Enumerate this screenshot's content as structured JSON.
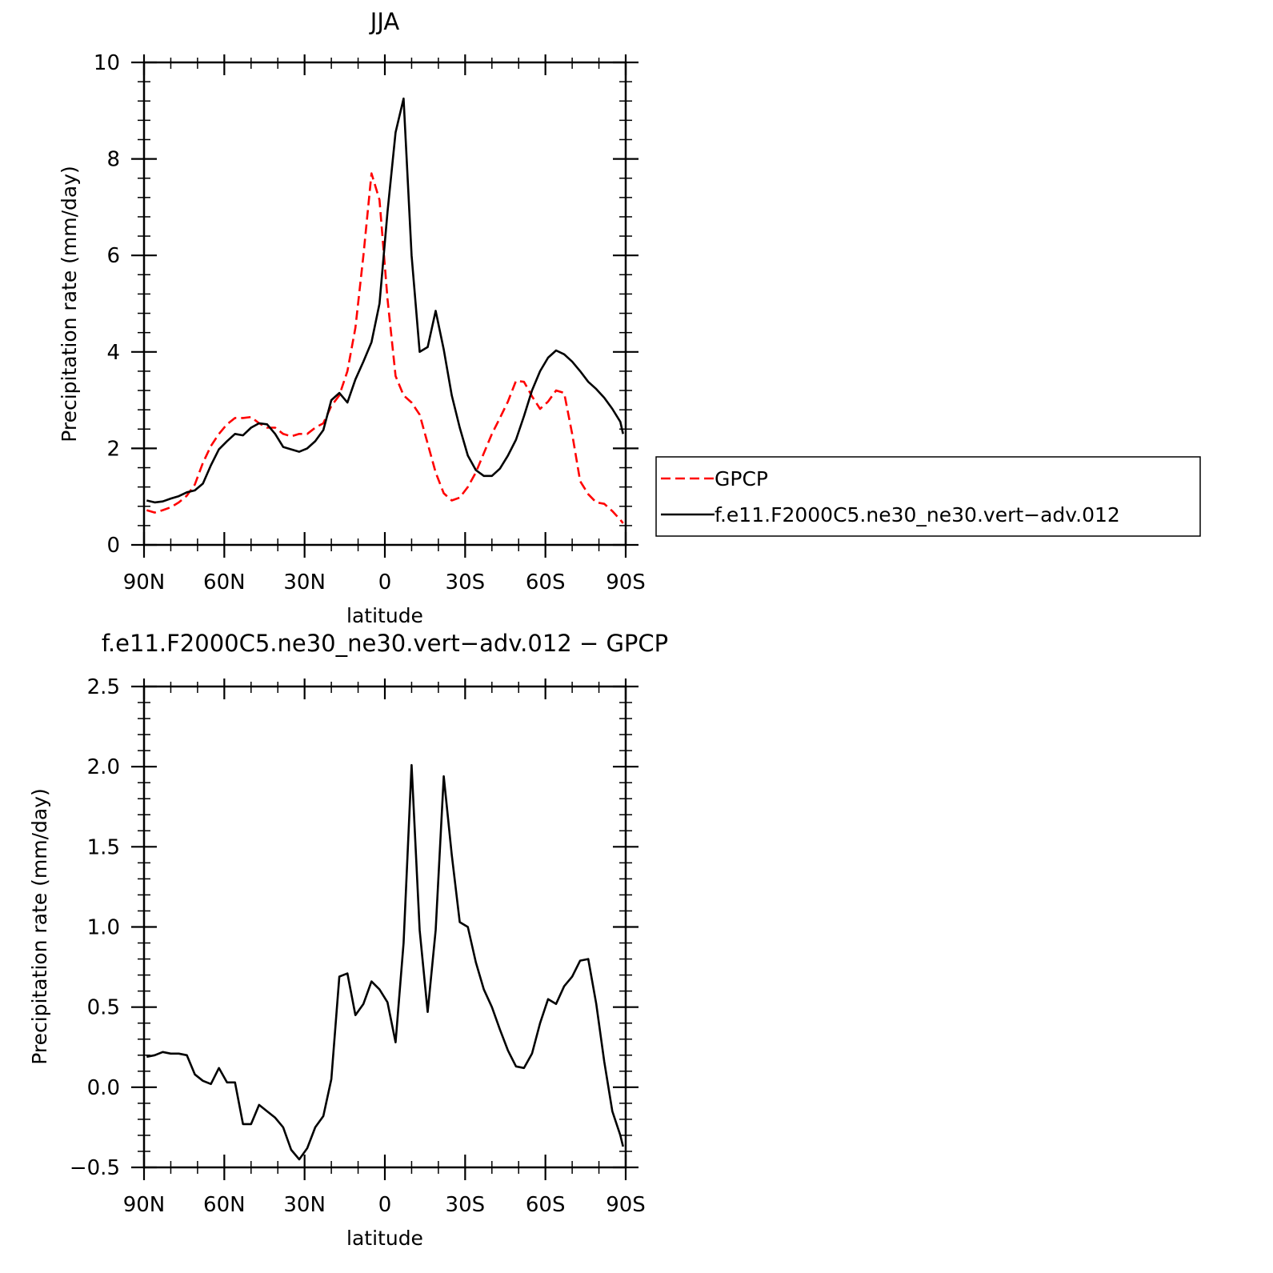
{
  "chart_data": [
    {
      "type": "line",
      "title": "JJA",
      "xlabel": "latitude",
      "ylabel": "Precipitation rate (mm/day)",
      "xlim": [
        90,
        -90
      ],
      "ylim": [
        0,
        10
      ],
      "yticks": [
        0,
        2,
        4,
        6,
        8,
        10
      ],
      "ytick_labels": [
        "0",
        "2",
        "4",
        "6",
        "8",
        "10"
      ],
      "xticks": [
        90,
        60,
        30,
        0,
        -30,
        -60,
        -90
      ],
      "xtick_labels": [
        "90N",
        "60N",
        "30N",
        "0",
        "30S",
        "60S",
        "90S"
      ],
      "legend_position": "right",
      "series": [
        {
          "name": "GPCP",
          "color": "#ff0000",
          "dash": "dashed",
          "points": [
            [
              89,
              0.72
            ],
            [
              86,
              0.67
            ],
            [
              83,
              0.72
            ],
            [
              80,
              0.78
            ],
            [
              77,
              0.88
            ],
            [
              74,
              1.02
            ],
            [
              71,
              1.25
            ],
            [
              68,
              1.7
            ],
            [
              65,
              2.05
            ],
            [
              62,
              2.3
            ],
            [
              59,
              2.5
            ],
            [
              56,
              2.63
            ],
            [
              53,
              2.63
            ],
            [
              50,
              2.65
            ],
            [
              47,
              2.52
            ],
            [
              44,
              2.43
            ],
            [
              41,
              2.43
            ],
            [
              38,
              2.3
            ],
            [
              35,
              2.25
            ],
            [
              32,
              2.3
            ],
            [
              29,
              2.3
            ],
            [
              26,
              2.43
            ],
            [
              23,
              2.52
            ],
            [
              20,
              2.88
            ],
            [
              17,
              3.1
            ],
            [
              14,
              3.6
            ],
            [
              11,
              4.5
            ],
            [
              8,
              6.0
            ],
            [
              5,
              7.7
            ],
            [
              2,
              7.15
            ],
            [
              -1,
              5.1
            ],
            [
              -4,
              3.5
            ],
            [
              -7,
              3.1
            ],
            [
              -10,
              2.95
            ],
            [
              -13,
              2.7
            ],
            [
              -16,
              2.1
            ],
            [
              -19,
              1.5
            ],
            [
              -22,
              1.07
            ],
            [
              -25,
              0.92
            ],
            [
              -28,
              0.98
            ],
            [
              -31,
              1.2
            ],
            [
              -34,
              1.5
            ],
            [
              -37,
              1.9
            ],
            [
              -40,
              2.3
            ],
            [
              -43,
              2.63
            ],
            [
              -46,
              2.97
            ],
            [
              -49,
              3.4
            ],
            [
              -52,
              3.38
            ],
            [
              -55,
              3.08
            ],
            [
              -58,
              2.82
            ],
            [
              -61,
              2.97
            ],
            [
              -64,
              3.2
            ],
            [
              -67,
              3.15
            ],
            [
              -70,
              2.3
            ],
            [
              -73,
              1.32
            ],
            [
              -76,
              1.05
            ],
            [
              -79,
              0.88
            ],
            [
              -82,
              0.85
            ],
            [
              -85,
              0.7
            ],
            [
              -88,
              0.52
            ],
            [
              -89,
              0.45
            ]
          ]
        },
        {
          "name": "f.e11.F2000C5.ne30_ne30.vert−adv.012",
          "color": "#000000",
          "dash": "solid",
          "points": [
            [
              89,
              0.92
            ],
            [
              86,
              0.88
            ],
            [
              83,
              0.9
            ],
            [
              80,
              0.96
            ],
            [
              77,
              1.01
            ],
            [
              74,
              1.09
            ],
            [
              71,
              1.13
            ],
            [
              68,
              1.27
            ],
            [
              65,
              1.65
            ],
            [
              62,
              1.98
            ],
            [
              59,
              2.15
            ],
            [
              56,
              2.3
            ],
            [
              53,
              2.27
            ],
            [
              50,
              2.43
            ],
            [
              47,
              2.52
            ],
            [
              44,
              2.5
            ],
            [
              41,
              2.3
            ],
            [
              38,
              2.03
            ],
            [
              35,
              1.98
            ],
            [
              32,
              1.93
            ],
            [
              29,
              2.0
            ],
            [
              26,
              2.15
            ],
            [
              23,
              2.38
            ],
            [
              20,
              3.0
            ],
            [
              17,
              3.15
            ],
            [
              14,
              2.95
            ],
            [
              11,
              3.43
            ],
            [
              8,
              3.8
            ],
            [
              5,
              4.2
            ],
            [
              2,
              5.0
            ],
            [
              -1,
              6.9
            ],
            [
              -4,
              8.55
            ],
            [
              -7,
              9.25
            ],
            [
              -10,
              6.0
            ],
            [
              -13,
              4.0
            ],
            [
              -16,
              4.1
            ],
            [
              -19,
              4.85
            ],
            [
              -22,
              4.05
            ],
            [
              -25,
              3.1
            ],
            [
              -28,
              2.43
            ],
            [
              -31,
              1.85
            ],
            [
              -34,
              1.55
            ],
            [
              -37,
              1.43
            ],
            [
              -40,
              1.43
            ],
            [
              -43,
              1.58
            ],
            [
              -46,
              1.85
            ],
            [
              -49,
              2.18
            ],
            [
              -52,
              2.67
            ],
            [
              -55,
              3.2
            ],
            [
              -58,
              3.6
            ],
            [
              -61,
              3.88
            ],
            [
              -64,
              4.03
            ],
            [
              -67,
              3.95
            ],
            [
              -70,
              3.8
            ],
            [
              -73,
              3.6
            ],
            [
              -76,
              3.38
            ],
            [
              -79,
              3.23
            ],
            [
              -82,
              3.05
            ],
            [
              -85,
              2.82
            ],
            [
              -88,
              2.55
            ],
            [
              -89,
              2.3
            ]
          ]
        }
      ]
    },
    {
      "type": "line",
      "title": "f.e11.F2000C5.ne30_ne30.vert−adv.012 − GPCP",
      "xlabel": "latitude",
      "ylabel": "Precipitation rate (mm/day)",
      "xlim": [
        90,
        -90
      ],
      "ylim": [
        -0.5,
        2.5
      ],
      "yticks": [
        -0.5,
        0.0,
        0.5,
        1.0,
        1.5,
        2.0,
        2.5
      ],
      "ytick_labels": [
        "−0.5",
        "0.0",
        "0.5",
        "1.0",
        "1.5",
        "2.0",
        "2.5"
      ],
      "xticks": [
        90,
        60,
        30,
        0,
        -30,
        -60,
        -90
      ],
      "xtick_labels": [
        "90N",
        "60N",
        "30N",
        "0",
        "30S",
        "60S",
        "90S"
      ],
      "series": [
        {
          "color": "#000000",
          "dash": "solid",
          "points": [
            [
              89,
              0.19
            ],
            [
              86,
              0.2
            ],
            [
              83,
              0.22
            ],
            [
              80,
              0.21
            ],
            [
              77,
              0.21
            ],
            [
              74,
              0.2
            ],
            [
              71,
              0.08
            ],
            [
              68,
              0.04
            ],
            [
              65,
              0.02
            ],
            [
              62,
              0.12
            ],
            [
              59,
              0.03
            ],
            [
              56,
              0.03
            ],
            [
              53,
              -0.23
            ],
            [
              50,
              -0.23
            ],
            [
              47,
              -0.11
            ],
            [
              44,
              -0.15
            ],
            [
              41,
              -0.19
            ],
            [
              38,
              -0.25
            ],
            [
              35,
              -0.39
            ],
            [
              32,
              -0.45
            ],
            [
              29,
              -0.38
            ],
            [
              26,
              -0.25
            ],
            [
              23,
              -0.18
            ],
            [
              20,
              0.05
            ],
            [
              17,
              0.69
            ],
            [
              14,
              0.71
            ],
            [
              11,
              0.45
            ],
            [
              8,
              0.52
            ],
            [
              5,
              0.66
            ],
            [
              2,
              0.61
            ],
            [
              -1,
              0.53
            ],
            [
              -4,
              0.28
            ],
            [
              -7,
              0.9
            ],
            [
              -10,
              2.01
            ],
            [
              -13,
              0.98
            ],
            [
              -16,
              0.47
            ],
            [
              -19,
              0.98
            ],
            [
              -22,
              1.94
            ],
            [
              -25,
              1.45
            ],
            [
              -28,
              1.03
            ],
            [
              -31,
              1.0
            ],
            [
              -34,
              0.78
            ],
            [
              -37,
              0.61
            ],
            [
              -40,
              0.5
            ],
            [
              -43,
              0.36
            ],
            [
              -46,
              0.23
            ],
            [
              -49,
              0.13
            ],
            [
              -52,
              0.12
            ],
            [
              -55,
              0.21
            ],
            [
              -58,
              0.4
            ],
            [
              -61,
              0.55
            ],
            [
              -64,
              0.52
            ],
            [
              -67,
              0.63
            ],
            [
              -70,
              0.69
            ],
            [
              -73,
              0.79
            ],
            [
              -76,
              0.8
            ],
            [
              -79,
              0.52
            ],
            [
              -82,
              0.16
            ],
            [
              -85,
              -0.15
            ],
            [
              -88,
              -0.3
            ],
            [
              -89,
              -0.37
            ]
          ]
        }
      ]
    }
  ]
}
